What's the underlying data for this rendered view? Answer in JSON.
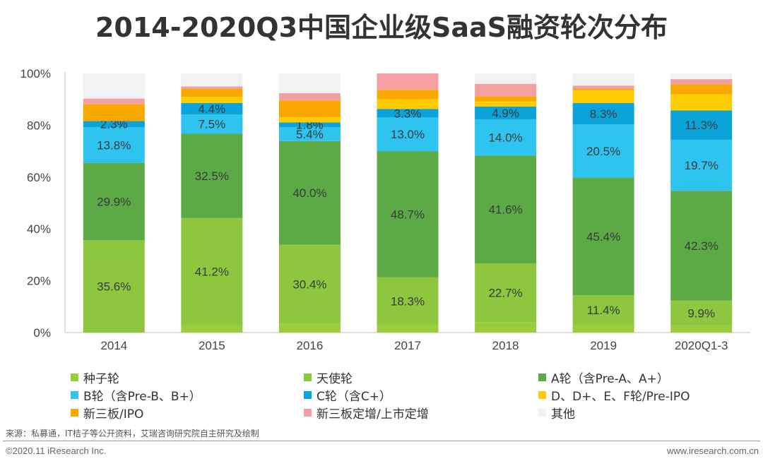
{
  "chart_data": {
    "type": "bar",
    "stacked": true,
    "title": "2014-2020Q3中国企业级SaaS融资轮次分布",
    "categories": [
      "2014",
      "2015",
      "2016",
      "2017",
      "2018",
      "2019",
      "2020Q1-3"
    ],
    "ylim": [
      0,
      100
    ],
    "yticks": [
      "0%",
      "20%",
      "40%",
      "60%",
      "80%",
      "100%"
    ],
    "series": [
      {
        "name": "种子轮",
        "color": "#9ACD3C",
        "values": [
          0,
          3.0,
          3.5,
          3.0,
          4.0,
          3.0,
          2.5
        ],
        "labels": [
          "",
          "",
          "",
          "",
          "",
          "",
          ""
        ]
      },
      {
        "name": "天使轮",
        "color": "#8DC73F",
        "values": [
          35.6,
          41.2,
          30.4,
          18.3,
          22.7,
          11.4,
          9.9
        ],
        "labels": [
          "35.6%",
          "41.2%",
          "30.4%",
          "18.3%",
          "22.7%",
          "11.4%",
          "9.9%"
        ]
      },
      {
        "name": "A轮（含Pre-A、A+）",
        "color": "#5BAA46",
        "values": [
          29.9,
          32.5,
          40.0,
          48.7,
          41.6,
          45.4,
          42.3
        ],
        "labels": [
          "29.9%",
          "32.5%",
          "40.0%",
          "48.7%",
          "41.6%",
          "45.4%",
          "42.3%"
        ]
      },
      {
        "name": "B轮（含Pre-B、B+）",
        "color": "#2FC3EF",
        "values": [
          13.8,
          7.5,
          5.4,
          13.0,
          14.0,
          20.5,
          19.7
        ],
        "labels": [
          "13.8%",
          "7.5%",
          "5.4%",
          "13.0%",
          "14.0%",
          "20.5%",
          "19.7%"
        ]
      },
      {
        "name": "C轮（含C+）",
        "color": "#0AA4DB",
        "values": [
          2.3,
          4.4,
          1.8,
          3.3,
          4.9,
          8.3,
          11.3
        ],
        "labels": [
          "2.3%",
          "4.4%",
          "1.8%",
          "3.3%",
          "4.9%",
          "8.3%",
          "11.3%"
        ]
      },
      {
        "name": "D、D+、E、F轮/Pre-IPO",
        "color": "#FFCC00",
        "values": [
          0,
          2.4,
          2.0,
          3.7,
          2.0,
          4.9,
          6.3
        ],
        "labels": [
          "",
          "",
          "",
          "",
          "",
          "",
          ""
        ]
      },
      {
        "name": "新三板/IPO",
        "color": "#F9A800",
        "values": [
          6.5,
          3.0,
          6.5,
          3.7,
          2.0,
          0.5,
          3.8
        ],
        "labels": [
          "",
          "",
          "",
          "",
          "",
          "",
          ""
        ]
      },
      {
        "name": "新三板定增/上市定增",
        "color": "#F4A0A2",
        "values": [
          2.2,
          1.0,
          2.8,
          6.3,
          4.8,
          1.3,
          2.0
        ],
        "labels": [
          "",
          "",
          "",
          "",
          "",
          "",
          ""
        ]
      },
      {
        "name": "其他",
        "color": "#F2F2F2",
        "values": [
          9.7,
          5.0,
          7.6,
          0,
          4.0,
          4.7,
          2.2
        ],
        "labels": [
          "",
          "",
          "",
          "",
          "",
          "",
          ""
        ]
      }
    ]
  },
  "legend": [
    "种子轮",
    "天使轮",
    "A轮（含Pre-A、A+）",
    "B轮（含Pre-B、B+）",
    "C轮（含C+）",
    "D、D+、E、F轮/Pre-IPO",
    "新三板/IPO",
    "新三板定增/上市定增",
    "其他"
  ],
  "source": "来源：私募通，IT桔子等公开资料，艾瑞咨询研究院自主研究及绘制",
  "footer": {
    "copyright": "©2020.11 iResearch Inc.",
    "website": "www.iresearch.com.cn"
  }
}
